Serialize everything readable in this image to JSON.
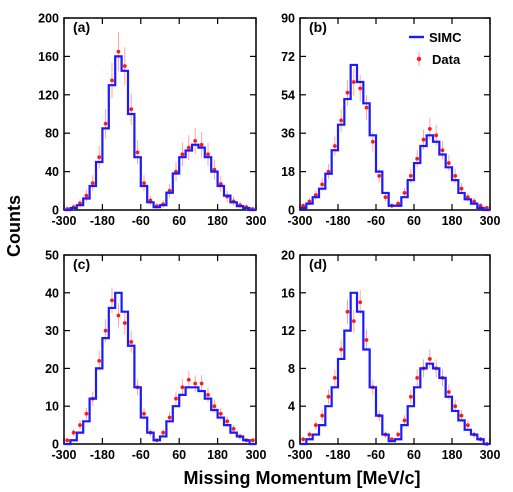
{
  "xlabel": "Missing Momentum [MeV/c]",
  "ylabel": "Counts",
  "legend": {
    "simc": "SIMC",
    "data": "Data"
  },
  "colors": {
    "simc": "#1a1aff",
    "data": "#ff1a1a",
    "error": "#ff9a9a"
  },
  "chart_data": [
    {
      "type": "line",
      "panel": "(a)",
      "xlim": [
        -300,
        300
      ],
      "ylim": [
        0,
        200
      ],
      "xticks": [
        -300,
        -180,
        -60,
        60,
        180,
        300
      ],
      "yticks": [
        0,
        40,
        80,
        120,
        160,
        200
      ],
      "series": [
        {
          "name": "SIMC",
          "kind": "histogram",
          "x": [
            -290,
            -270,
            -250,
            -230,
            -210,
            -190,
            -170,
            -150,
            -130,
            -110,
            -90,
            -70,
            -50,
            -30,
            -10,
            10,
            30,
            50,
            70,
            90,
            110,
            130,
            150,
            170,
            190,
            210,
            230,
            250,
            270,
            290
          ],
          "y": [
            0,
            2,
            5,
            12,
            25,
            50,
            85,
            130,
            160,
            145,
            100,
            55,
            25,
            8,
            3,
            5,
            18,
            38,
            55,
            62,
            68,
            65,
            55,
            40,
            25,
            15,
            8,
            4,
            2,
            0
          ]
        },
        {
          "name": "Data",
          "kind": "points",
          "x": [
            -290,
            -270,
            -250,
            -230,
            -210,
            -190,
            -170,
            -150,
            -130,
            -110,
            -90,
            -70,
            -50,
            -30,
            -10,
            10,
            30,
            50,
            70,
            90,
            110,
            130,
            150,
            170,
            190,
            210,
            230,
            250,
            270,
            290
          ],
          "y": [
            1,
            3,
            7,
            15,
            28,
            55,
            90,
            135,
            165,
            150,
            105,
            60,
            28,
            10,
            4,
            6,
            20,
            40,
            58,
            65,
            72,
            68,
            58,
            42,
            27,
            14,
            9,
            5,
            3,
            1
          ]
        }
      ]
    },
    {
      "type": "line",
      "panel": "(b)",
      "xlim": [
        -300,
        300
      ],
      "ylim": [
        0,
        90
      ],
      "xticks": [
        -300,
        -180,
        -60,
        60,
        180,
        300
      ],
      "yticks": [
        0,
        18,
        36,
        54,
        72,
        90
      ],
      "series": [
        {
          "name": "SIMC",
          "kind": "histogram",
          "x": [
            -290,
            -270,
            -250,
            -230,
            -210,
            -190,
            -170,
            -150,
            -130,
            -110,
            -90,
            -70,
            -50,
            -30,
            -10,
            10,
            30,
            50,
            70,
            90,
            110,
            130,
            150,
            170,
            190,
            210,
            230,
            250,
            270,
            290
          ],
          "y": [
            1,
            3,
            6,
            10,
            17,
            28,
            40,
            52,
            68,
            60,
            50,
            35,
            18,
            8,
            2,
            2,
            6,
            14,
            22,
            30,
            35,
            32,
            26,
            20,
            14,
            8,
            5,
            3,
            1,
            0
          ]
        },
        {
          "name": "Data",
          "kind": "points",
          "x": [
            -290,
            -270,
            -250,
            -230,
            -210,
            -190,
            -170,
            -150,
            -130,
            -110,
            -90,
            -70,
            -50,
            -30,
            -10,
            10,
            30,
            50,
            70,
            90,
            110,
            130,
            150,
            170,
            190,
            210,
            230,
            250,
            270,
            290
          ],
          "y": [
            2,
            4,
            7,
            12,
            18,
            30,
            42,
            55,
            60,
            57,
            48,
            32,
            16,
            6,
            2,
            3,
            8,
            16,
            24,
            33,
            38,
            35,
            28,
            22,
            16,
            10,
            6,
            4,
            2,
            1
          ]
        }
      ]
    },
    {
      "type": "line",
      "panel": "(c)",
      "xlim": [
        -300,
        300
      ],
      "ylim": [
        0,
        50
      ],
      "xticks": [
        -300,
        -180,
        -60,
        60,
        180,
        300
      ],
      "yticks": [
        0,
        10,
        20,
        30,
        40,
        50
      ],
      "series": [
        {
          "name": "SIMC",
          "kind": "histogram",
          "x": [
            -290,
            -270,
            -250,
            -230,
            -210,
            -190,
            -170,
            -150,
            -130,
            -110,
            -90,
            -70,
            -50,
            -30,
            -10,
            10,
            30,
            50,
            70,
            90,
            110,
            130,
            150,
            170,
            190,
            210,
            230,
            250,
            270,
            290
          ],
          "y": [
            0,
            1,
            3,
            6,
            12,
            20,
            28,
            36,
            40,
            35,
            26,
            15,
            7,
            3,
            1,
            2,
            6,
            10,
            13,
            15,
            15,
            14,
            12,
            9,
            7,
            5,
            3,
            2,
            1,
            0
          ]
        },
        {
          "name": "Data",
          "kind": "points",
          "x": [
            -290,
            -270,
            -250,
            -230,
            -210,
            -190,
            -170,
            -150,
            -130,
            -110,
            -90,
            -70,
            -50,
            -30,
            -10,
            10,
            30,
            50,
            70,
            90,
            110,
            130,
            150,
            170,
            190,
            210,
            230,
            250,
            270,
            290
          ],
          "y": [
            1,
            3,
            5,
            8,
            12,
            22,
            30,
            38,
            34,
            32,
            27,
            15,
            8,
            3,
            1,
            3,
            7,
            12,
            15,
            17,
            16,
            16,
            13,
            10,
            8,
            6,
            4,
            2,
            1,
            1
          ]
        }
      ]
    },
    {
      "type": "line",
      "panel": "(d)",
      "xlim": [
        -300,
        300
      ],
      "ylim": [
        0,
        20
      ],
      "xticks": [
        -300,
        -180,
        -60,
        60,
        180,
        300
      ],
      "yticks": [
        0,
        4,
        8,
        12,
        16,
        20
      ],
      "series": [
        {
          "name": "SIMC",
          "kind": "histogram",
          "x": [
            -290,
            -270,
            -250,
            -230,
            -210,
            -190,
            -170,
            -150,
            -130,
            -110,
            -90,
            -70,
            -50,
            -30,
            -10,
            10,
            30,
            50,
            70,
            90,
            110,
            130,
            150,
            170,
            190,
            210,
            230,
            250,
            270,
            290
          ],
          "y": [
            0,
            0.5,
            1,
            2,
            4,
            6,
            9,
            12,
            16,
            14,
            10,
            6,
            3,
            1,
            0.3,
            0.5,
            2,
            4,
            6,
            8,
            8.5,
            8,
            7,
            5,
            3.5,
            2.5,
            1.5,
            1,
            0.5,
            0
          ]
        },
        {
          "name": "Data",
          "kind": "points",
          "x": [
            -290,
            -270,
            -250,
            -230,
            -210,
            -190,
            -170,
            -150,
            -130,
            -110,
            -90,
            -70,
            -50,
            -30,
            -10,
            10,
            30,
            50,
            70,
            90,
            110,
            130,
            150,
            170,
            190,
            210,
            230,
            250,
            270,
            290
          ],
          "y": [
            0.5,
            1,
            2,
            3,
            5,
            7,
            10,
            14,
            13,
            15,
            11,
            6,
            3,
            1,
            0.5,
            1,
            2.5,
            5,
            7,
            8,
            9,
            8,
            7,
            5.5,
            4,
            3,
            2,
            1,
            0.5,
            0
          ]
        }
      ]
    }
  ]
}
